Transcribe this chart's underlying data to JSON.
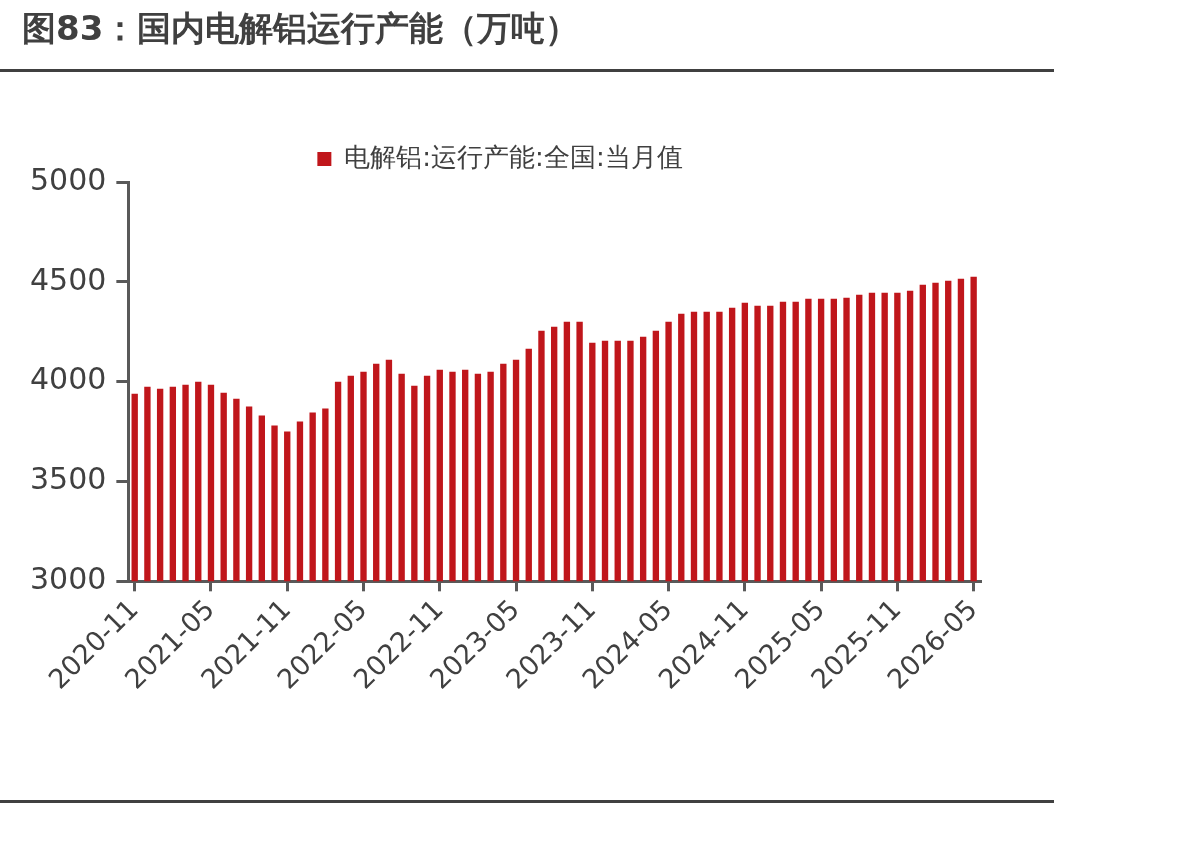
{
  "chart_data": {
    "type": "bar",
    "title": "图83：国内电解铝运行产能（万吨）",
    "categories": [
      "2020-11",
      null,
      null,
      null,
      null,
      null,
      "2021-05",
      null,
      null,
      null,
      null,
      null,
      "2021-11",
      null,
      null,
      null,
      null,
      null,
      "2022-05",
      null,
      null,
      null,
      null,
      null,
      "2022-11",
      null,
      null,
      null,
      null,
      null,
      "2023-05",
      null,
      null,
      null,
      null,
      null,
      "2023-11",
      null,
      null,
      null,
      null,
      null,
      "2024-05",
      null,
      null,
      null,
      null,
      null,
      "2024-11",
      null,
      null,
      null,
      null,
      null,
      "2025-05",
      null,
      null,
      null,
      null,
      null,
      "2025-11",
      null,
      null,
      null,
      null,
      null,
      "2026-05"
    ],
    "series": [
      {
        "name": "电解铝:运行产能:全国:当月值",
        "color": "#c0161b",
        "values": [
          3940,
          3975,
          3965,
          3975,
          3985,
          4000,
          3985,
          3945,
          3915,
          3875,
          3830,
          3780,
          3750,
          3800,
          3845,
          3865,
          4000,
          4030,
          4050,
          4090,
          4110,
          4040,
          3980,
          4030,
          4060,
          4050,
          4060,
          4040,
          4050,
          4090,
          4110,
          4165,
          4255,
          4275,
          4300,
          4300,
          4195,
          4205,
          4205,
          4205,
          4225,
          4255,
          4300,
          4340,
          4350,
          4350,
          4350,
          4370,
          4395,
          4380,
          4380,
          4400,
          4400,
          4415,
          4415,
          4415,
          4420,
          4435,
          4445,
          4445,
          4445,
          4455,
          4485,
          4495,
          4505,
          4515,
          4525
        ]
      }
    ],
    "ylim": [
      3000,
      5000
    ],
    "yticks": [
      3000,
      3500,
      4000,
      4500,
      5000
    ],
    "grid": false,
    "legend": "top"
  }
}
